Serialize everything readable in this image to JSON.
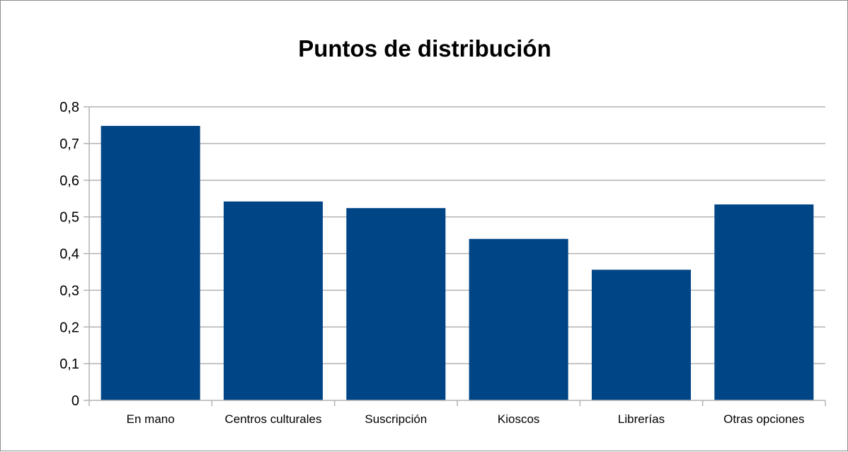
{
  "chart_data": {
    "type": "bar",
    "title": "Puntos de distribución",
    "xlabel": "",
    "ylabel": "",
    "categories": [
      "En mano",
      "Centros culturales",
      "Suscripción",
      "Kioscos",
      "Librerías",
      "Otras opciones"
    ],
    "values": [
      0.748,
      0.542,
      0.524,
      0.44,
      0.356,
      0.534
    ],
    "ylim": [
      0,
      0.8
    ],
    "yticks": [
      "0",
      "0,1",
      "0,2",
      "0,3",
      "0,4",
      "0,5",
      "0,6",
      "0,7",
      "0,8"
    ],
    "grid": "horizontal",
    "legend": "none",
    "bar_color": "#004586",
    "grid_color": "#b3b3b3",
    "axis_color": "#b3b3b3"
  }
}
